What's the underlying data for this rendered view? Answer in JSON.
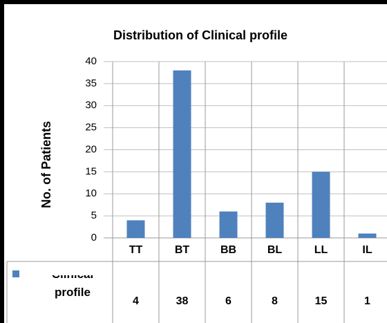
{
  "chart_data": {
    "type": "bar",
    "title": "Distribution of Clinical  profile",
    "y_label": "No. of Patients",
    "categories": [
      "TT",
      "BT",
      "BB",
      "BL",
      "LL",
      "IL"
    ],
    "series": [
      {
        "name": "Clinical profile",
        "color": "#4f81bd",
        "values": [
          4,
          38,
          6,
          8,
          15,
          1
        ]
      }
    ],
    "ylim": [
      0,
      40
    ],
    "yticks": [
      0,
      5,
      10,
      15,
      20,
      25,
      30,
      35,
      40
    ],
    "grid": true
  }
}
